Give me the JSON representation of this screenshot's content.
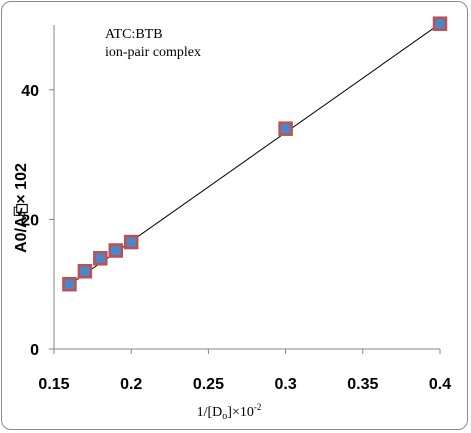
{
  "chart_data": {
    "type": "scatter",
    "annotation_lines": [
      "ATC:BTB",
      "ion-pair complex"
    ],
    "ylabel": "A0/A⎗× 102",
    "xlabel": {
      "prefix": "1/[D",
      "sub": "o",
      "mid": "]×10",
      "sup": "-2"
    },
    "xlim": [
      0.15,
      0.4
    ],
    "ylim": [
      0,
      50
    ],
    "x_ticks": [
      "0.15",
      "0.2",
      "0.25",
      "0.3",
      "0.35",
      "0.4"
    ],
    "x_tick_values": [
      0.15,
      0.2,
      0.25,
      0.3,
      0.35,
      0.4
    ],
    "y_ticks": [
      "0",
      "20",
      "40"
    ],
    "y_tick_values": [
      0,
      20,
      40
    ],
    "grid": false,
    "trendline": {
      "x": [
        0.16,
        0.4
      ],
      "y": [
        9.9,
        50.2
      ]
    },
    "series": [
      {
        "x": [
          0.16,
          0.17,
          0.18,
          0.19,
          0.2,
          0.3,
          0.4
        ],
        "y": [
          10.0,
          12.0,
          14.0,
          15.2,
          16.5,
          34.0,
          50.2
        ],
        "marker_fill": "#4a86c8",
        "marker_edge": "#c0504d"
      }
    ],
    "line_color": "#000000"
  }
}
